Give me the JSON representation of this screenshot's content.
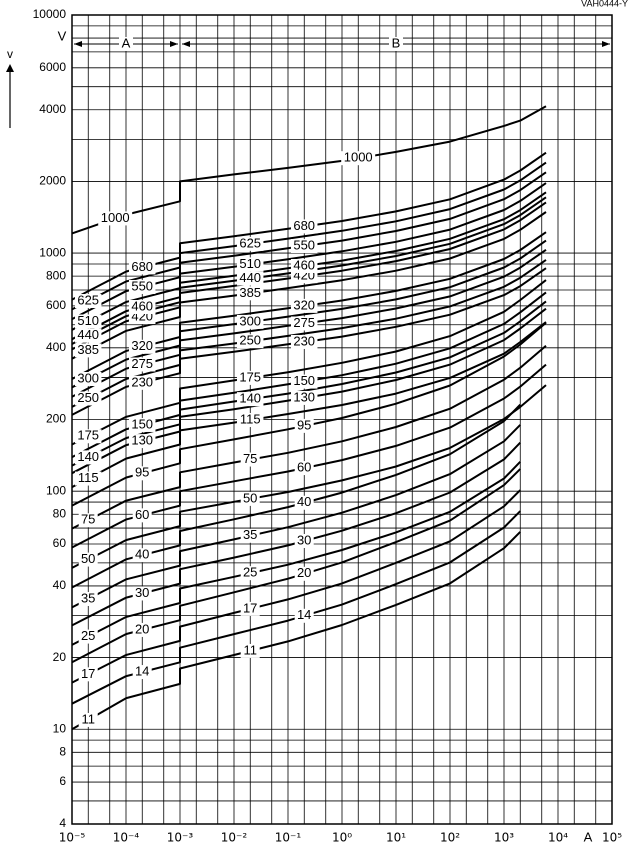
{
  "chart_data": {
    "type": "line",
    "code": "VAH0444-Y",
    "y_label": "v",
    "y_unit": "V",
    "x_unit": "A",
    "xscale": "log",
    "yscale": "log",
    "xlim": [
      1e-05,
      100000
    ],
    "ylim": [
      4,
      10000
    ],
    "grid": true,
    "color": "#000000",
    "xticks": [
      {
        "value": 1e-05,
        "label": "10⁻⁵"
      },
      {
        "value": 0.0001,
        "label": "10⁻⁴"
      },
      {
        "value": 0.001,
        "label": "10⁻³"
      },
      {
        "value": 0.01,
        "label": "10⁻²"
      },
      {
        "value": 0.1,
        "label": "10⁻¹"
      },
      {
        "value": 1,
        "label": "10⁰"
      },
      {
        "value": 10,
        "label": "10¹"
      },
      {
        "value": 100,
        "label": "10²"
      },
      {
        "value": 1000,
        "label": "10³"
      },
      {
        "value": 10000,
        "label": "10⁴"
      },
      {
        "value": 100000,
        "label": "10⁵"
      }
    ],
    "x_minor_grid": [
      2e-05,
      5e-05,
      0.0002,
      0.0005,
      0.002,
      0.005,
      0.02,
      0.05,
      0.2,
      0.5,
      2,
      5,
      20,
      50,
      200,
      500,
      2000,
      5000,
      20000,
      50000
    ],
    "yticks": [
      4,
      6,
      8,
      10,
      20,
      40,
      60,
      80,
      100,
      200,
      400,
      600,
      800,
      1000,
      2000,
      4000,
      6000,
      10000
    ],
    "y_minor_grid": [
      5,
      7,
      9,
      30,
      50,
      70,
      90,
      300,
      500,
      700,
      900,
      3000,
      5000,
      7000,
      8000,
      9000
    ],
    "regions": [
      {
        "label": "A",
        "from": 1e-05,
        "to": 0.001
      },
      {
        "label": "B",
        "from": 0.001,
        "to": 100000
      }
    ],
    "x": [
      1e-05,
      0.0001,
      0.001,
      0.001,
      0.01,
      0.1,
      1,
      10,
      100,
      1000,
      2000,
      6000
    ],
    "series": [
      {
        "name": "11",
        "values": [
          10,
          13.5,
          15.5,
          18,
          20.5,
          23.4,
          27.4,
          33.3,
          41,
          57.6,
          67.5,
          null
        ]
      },
      {
        "name": "14",
        "values": [
          12.8,
          16.7,
          19.1,
          22,
          25.1,
          28.6,
          33.4,
          40.7,
          50.2,
          70.4,
          82.5,
          null
        ]
      },
      {
        "name": "17",
        "values": [
          15.7,
          20.5,
          23.5,
          27,
          30.8,
          35.1,
          41,
          50,
          61.6,
          86.4,
          101,
          null
        ]
      },
      {
        "name": "20",
        "values": [
          19.1,
          25.1,
          28.7,
          33,
          37.6,
          42.9,
          50.2,
          61.1,
          75.2,
          106,
          124,
          null
        ]
      },
      {
        "name": "25",
        "values": [
          22.6,
          29.6,
          33.9,
          39,
          43.7,
          49.1,
          56.6,
          67.1,
          81.9,
          113,
          133,
          null
        ]
      },
      {
        "name": "30",
        "values": [
          27.3,
          35.7,
          40.9,
          47,
          52.6,
          59.2,
          68.2,
          80.8,
          98.7,
          136,
          160,
          null
        ]
      },
      {
        "name": "35",
        "values": [
          32.5,
          42.6,
          48.7,
          56,
          62.7,
          70.6,
          81.2,
          96.3,
          118,
          162,
          190,
          null
        ]
      },
      {
        "name": "40",
        "values": [
          39.4,
          51.7,
          59.2,
          68,
          76.2,
          85.7,
          98.6,
          117,
          143,
          197,
          231,
          null
        ]
      },
      {
        "name": "50",
        "values": [
          47.6,
          62.3,
          71.3,
          82,
          90.2,
          99.2,
          111,
          127,
          152,
          201,
          226,
          279
        ]
      },
      {
        "name": "60",
        "values": [
          58,
          76,
          87,
          100,
          110,
          121,
          135,
          155,
          185,
          245,
          275,
          340
        ]
      },
      {
        "name": "75",
        "values": [
          69.6,
          91.2,
          104,
          120,
          132,
          145,
          162,
          186,
          222,
          294,
          330,
          408
        ]
      },
      {
        "name": "95",
        "values": [
          87,
          114,
          131,
          150,
          165,
          182,
          203,
          233,
          278,
          368,
          413,
          510
        ]
      },
      {
        "name": "115",
        "values": [
          104,
          137,
          157,
          180,
          194,
          211,
          230,
          257,
          299,
          378,
          423,
          513
        ]
      },
      {
        "name": "130",
        "values": [
          119,
          156,
          178,
          205,
          221,
          240,
          262,
          293,
          340,
          431,
          482,
          584
        ]
      },
      {
        "name": "140",
        "values": [
          128,
          167,
          191,
          220,
          238,
          257,
          282,
          315,
          365,
          462,
          517,
          627
        ]
      },
      {
        "name": "150",
        "values": [
          139,
          182,
          209,
          240,
          259,
          281,
          307,
          343,
          398,
          504,
          564,
          684
        ]
      },
      {
        "name": "175",
        "values": [
          157,
          205,
          235,
          270,
          292,
          316,
          346,
          386,
          448,
          567,
          635,
          770
        ]
      },
      {
        "name": "230",
        "values": [
          209,
          274,
          313,
          360,
          385,
          414,
          446,
          490,
          551,
          666,
          727,
          864
        ]
      },
      {
        "name": "250",
        "values": [
          226,
          296,
          339,
          390,
          417,
          449,
          484,
          530,
          597,
          722,
          788,
          936
        ]
      },
      {
        "name": "275",
        "values": [
          249,
          327,
          374,
          430,
          460,
          495,
          533,
          585,
          658,
          796,
          869,
          1032
        ]
      },
      {
        "name": "300",
        "values": [
          273,
          357,
          409,
          470,
          503,
          541,
          583,
          639,
          719,
          870,
          949,
          1128
        ]
      },
      {
        "name": "320",
        "values": [
          296,
          388,
          444,
          510,
          546,
          587,
          632,
          694,
          780,
          944,
          1030,
          1224
        ]
      },
      {
        "name": "385",
        "values": [
          360,
          471,
          539,
          620,
          663,
          713,
          769,
          843,
          949,
          1147,
          1252,
          1488
        ]
      },
      {
        "name": "420",
        "values": [
          394,
          517,
          592,
          680,
          728,
          782,
          843,
          925,
          1040,
          1258,
          1374,
          1632
        ]
      },
      {
        "name": "440",
        "values": [
          415,
          543,
          622,
          715,
          765,
          822,
          887,
          972,
          1094,
          1323,
          1444,
          1716
        ]
      },
      {
        "name": "460",
        "values": [
          435,
          570,
          653,
          750,
          803,
          863,
          930,
          1020,
          1148,
          1388,
          1515,
          1800
        ]
      },
      {
        "name": "510",
        "values": [
          476,
          623,
          713,
          820,
          877,
          943,
          1017,
          1115,
          1255,
          1517,
          1656,
          1968
        ]
      },
      {
        "name": "550",
        "values": [
          528,
          692,
          792,
          910,
          974,
          1047,
          1128,
          1238,
          1392,
          1684,
          1838,
          2184
        ]
      },
      {
        "name": "625",
        "values": [
          580,
          760,
          870,
          1000,
          1070,
          1150,
          1240,
          1360,
          1530,
          1850,
          2020,
          2400
        ]
      },
      {
        "name": "680",
        "values": [
          638,
          836,
          957,
          1100,
          1177,
          1265,
          1364,
          1496,
          1683,
          2035,
          2222,
          2640
        ]
      },
      {
        "name": "1000",
        "values": [
          1210,
          1450,
          1650,
          2000,
          2140,
          2280,
          2440,
          2660,
          2940,
          3420,
          3600,
          4140
        ]
      }
    ]
  }
}
